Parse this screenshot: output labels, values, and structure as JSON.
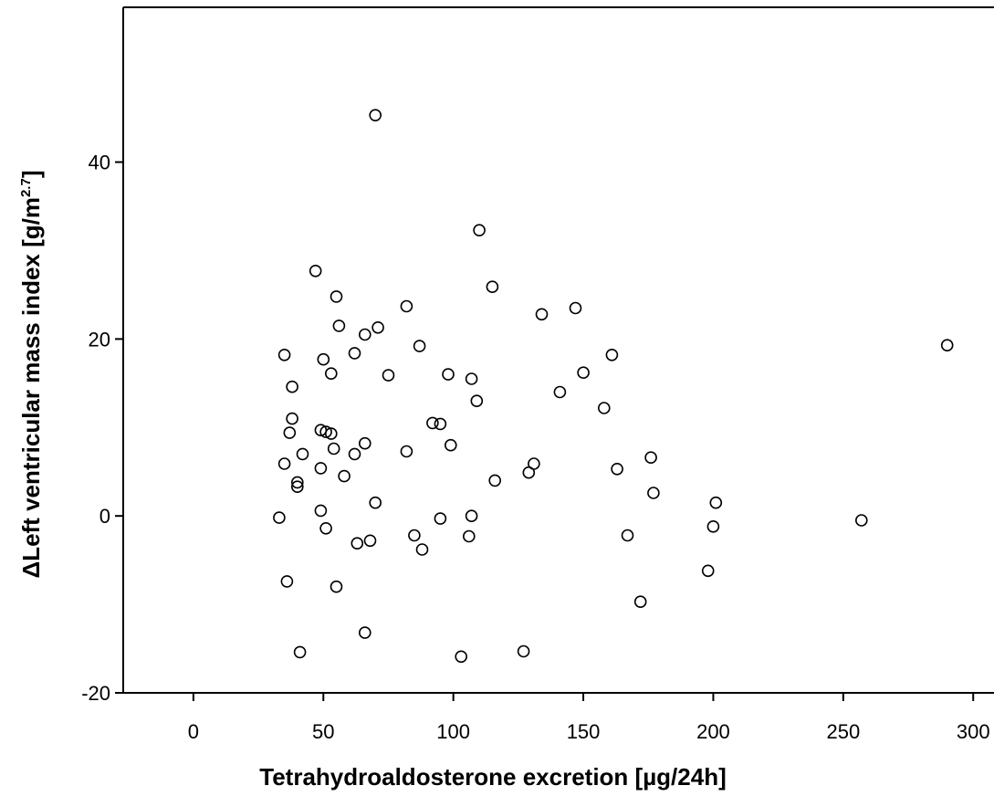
{
  "chart_data": {
    "type": "scatter",
    "title": "",
    "xlabel": "Tetrahydroaldosterone excretion [µg/24h]",
    "ylabel_main": "ΔLeft ventricular mass index [g/m",
    "ylabel_sup": "2.7",
    "ylabel_close": "]",
    "xlim": [
      -27,
      308
    ],
    "ylim": [
      -20,
      57.5
    ],
    "x_ticks": [
      0,
      50,
      100,
      150,
      200,
      250,
      300
    ],
    "y_ticks": [
      -20,
      0,
      20,
      40
    ],
    "x_tick_labels": [
      "0",
      "50",
      "100",
      "150",
      "200",
      "250",
      "300"
    ],
    "y_tick_labels": [
      "-20",
      "0",
      "20",
      "40"
    ],
    "grid": false,
    "legend": "none",
    "marker": "open-circle",
    "points": [
      {
        "x": 33,
        "y": -0.2
      },
      {
        "x": 35,
        "y": 18.2
      },
      {
        "x": 35,
        "y": 5.9
      },
      {
        "x": 36,
        "y": -7.4
      },
      {
        "x": 37,
        "y": 9.4
      },
      {
        "x": 38,
        "y": 14.6
      },
      {
        "x": 38,
        "y": 11.0
      },
      {
        "x": 40,
        "y": 3.8
      },
      {
        "x": 40,
        "y": 3.3
      },
      {
        "x": 41,
        "y": -15.4
      },
      {
        "x": 42,
        "y": 7.0
      },
      {
        "x": 47,
        "y": 27.7
      },
      {
        "x": 49,
        "y": 9.7
      },
      {
        "x": 49,
        "y": 5.4
      },
      {
        "x": 49,
        "y": 0.6
      },
      {
        "x": 50,
        "y": 17.7
      },
      {
        "x": 51,
        "y": 9.5
      },
      {
        "x": 51,
        "y": -1.4
      },
      {
        "x": 53,
        "y": 16.1
      },
      {
        "x": 53,
        "y": 9.3
      },
      {
        "x": 54,
        "y": 7.6
      },
      {
        "x": 55,
        "y": 24.8
      },
      {
        "x": 55,
        "y": -8.0
      },
      {
        "x": 56,
        "y": 21.5
      },
      {
        "x": 58,
        "y": 4.5
      },
      {
        "x": 62,
        "y": 18.4
      },
      {
        "x": 62,
        "y": 7.0
      },
      {
        "x": 63,
        "y": -3.1
      },
      {
        "x": 66,
        "y": 20.5
      },
      {
        "x": 66,
        "y": 8.2
      },
      {
        "x": 66,
        "y": -13.2
      },
      {
        "x": 68,
        "y": -2.8
      },
      {
        "x": 70,
        "y": 45.3
      },
      {
        "x": 70,
        "y": 1.5
      },
      {
        "x": 71,
        "y": 21.3
      },
      {
        "x": 75,
        "y": 15.9
      },
      {
        "x": 82,
        "y": 23.7
      },
      {
        "x": 82,
        "y": 7.3
      },
      {
        "x": 85,
        "y": -2.2
      },
      {
        "x": 87,
        "y": 19.2
      },
      {
        "x": 88,
        "y": -3.8
      },
      {
        "x": 92,
        "y": 10.5
      },
      {
        "x": 95,
        "y": 10.4
      },
      {
        "x": 95,
        "y": -0.3
      },
      {
        "x": 98,
        "y": 16.0
      },
      {
        "x": 99,
        "y": 8.0
      },
      {
        "x": 103,
        "y": -15.9
      },
      {
        "x": 106,
        "y": -2.3
      },
      {
        "x": 107,
        "y": 15.5
      },
      {
        "x": 107,
        "y": 0.0
      },
      {
        "x": 109,
        "y": 13.0
      },
      {
        "x": 110,
        "y": 32.3
      },
      {
        "x": 115,
        "y": 25.9
      },
      {
        "x": 116,
        "y": 4.0
      },
      {
        "x": 127,
        "y": -15.3
      },
      {
        "x": 129,
        "y": 4.9
      },
      {
        "x": 131,
        "y": 5.9
      },
      {
        "x": 134,
        "y": 22.8
      },
      {
        "x": 141,
        "y": 14.0
      },
      {
        "x": 147,
        "y": 23.5
      },
      {
        "x": 150,
        "y": 16.2
      },
      {
        "x": 158,
        "y": 12.2
      },
      {
        "x": 161,
        "y": 18.2
      },
      {
        "x": 163,
        "y": 5.3
      },
      {
        "x": 167,
        "y": -2.2
      },
      {
        "x": 172,
        "y": -9.7
      },
      {
        "x": 176,
        "y": 6.6
      },
      {
        "x": 177,
        "y": 2.6
      },
      {
        "x": 198,
        "y": -6.2
      },
      {
        "x": 200,
        "y": -1.2
      },
      {
        "x": 201,
        "y": 1.5
      },
      {
        "x": 257,
        "y": -0.5
      },
      {
        "x": 290,
        "y": 19.3
      }
    ]
  }
}
